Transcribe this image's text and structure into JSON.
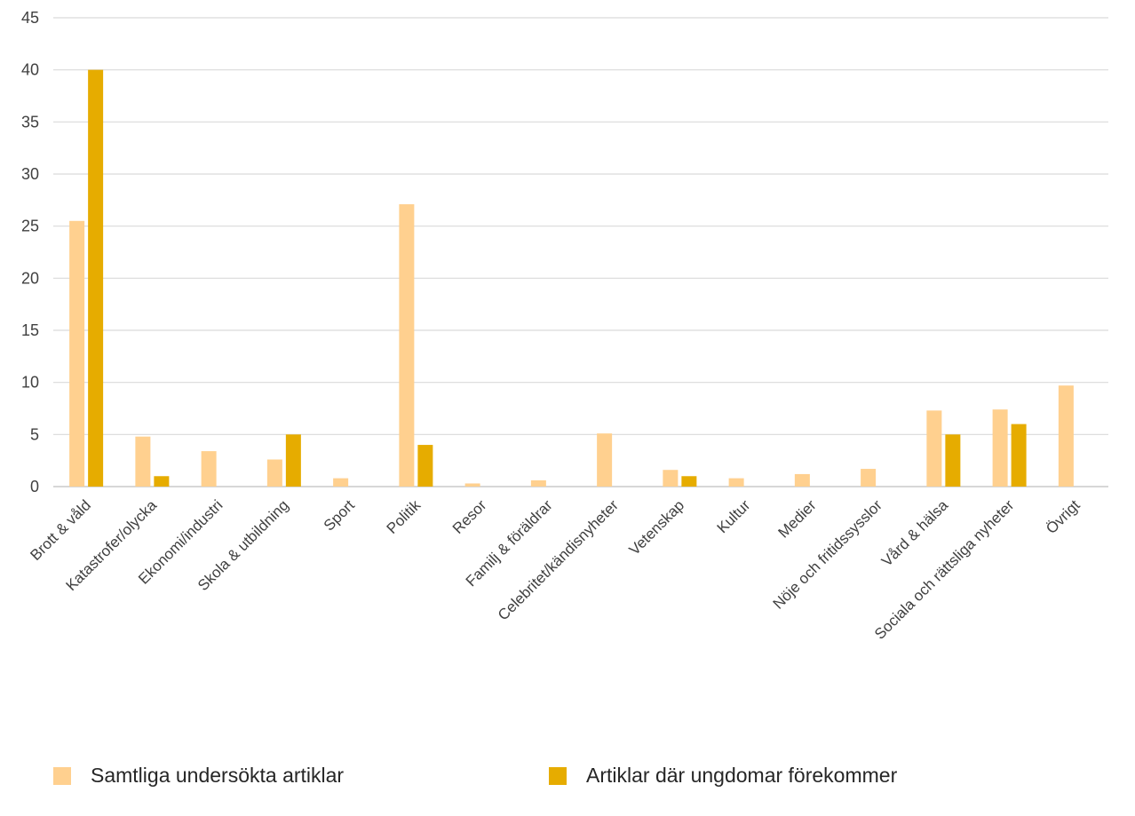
{
  "chart_data": {
    "type": "bar",
    "title": "",
    "xlabel": "",
    "ylabel": "",
    "ylim": [
      0,
      45
    ],
    "yticks": [
      0,
      5,
      10,
      15,
      20,
      25,
      30,
      35,
      40,
      45
    ],
    "grid": true,
    "legend_position": "bottom",
    "categories": [
      "Brott & våld",
      "Katastrofer/olycka",
      "Ekonomi/industri",
      "Skola & utbildning",
      "Sport",
      "Politik",
      "Resor",
      "Familj & föräldrar",
      "Celebritet/kändisnyheter",
      "Vetenskap",
      "Kultur",
      "Medier",
      "Nöje och fritidssysslor",
      "Vård & hälsa",
      "Sociala och rättsliga nyheter",
      "Övrigt"
    ],
    "series": [
      {
        "name": "Samtliga undersökta artiklar",
        "color": "#FFD08F",
        "values": [
          25.5,
          4.8,
          3.4,
          2.6,
          0.8,
          27.1,
          0.3,
          0.6,
          5.1,
          1.6,
          0.8,
          1.2,
          1.7,
          7.3,
          7.4,
          9.7
        ]
      },
      {
        "name": "Artiklar där ungdomar förekommer",
        "color": "#E6AC00",
        "values": [
          40,
          1,
          0,
          5,
          0,
          4,
          0,
          0,
          0,
          1,
          0,
          0,
          0,
          5,
          6,
          0
        ]
      }
    ]
  }
}
